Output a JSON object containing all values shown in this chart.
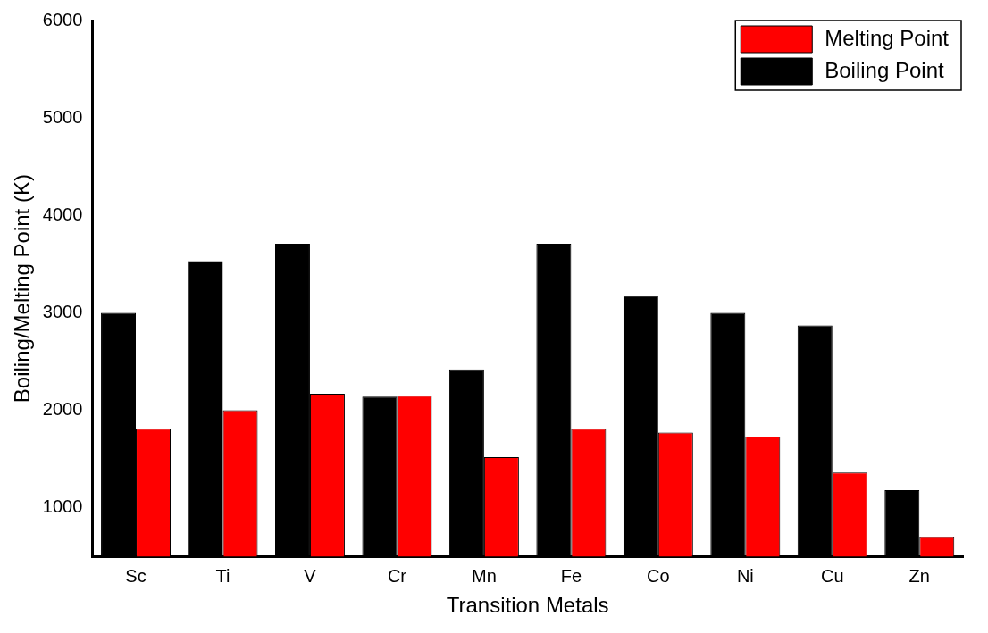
{
  "chart_data": {
    "type": "bar",
    "xlabel": "Transition Metals",
    "ylabel": "Boiling/Melting Point (K)",
    "categories": [
      "Sc",
      "Ti",
      "V",
      "Cr",
      "Mn",
      "Fe",
      "Co",
      "Ni",
      "Cu",
      "Zn"
    ],
    "series": [
      {
        "name": "Boiling Point",
        "color": "#000000",
        "values": [
          3000,
          3530,
          3710,
          2140,
          2420,
          3710,
          3170,
          3000,
          2870,
          1180
        ]
      },
      {
        "name": "Melting Point",
        "color": "#ff0000",
        "values": [
          1810,
          2000,
          2170,
          2150,
          1520,
          1810,
          1770,
          1730,
          1360,
          700
        ]
      }
    ],
    "ylim": [
      500,
      6000
    ],
    "yticks": [
      1000,
      2000,
      3000,
      4000,
      5000,
      6000
    ],
    "grid": false,
    "legend": "top right"
  }
}
